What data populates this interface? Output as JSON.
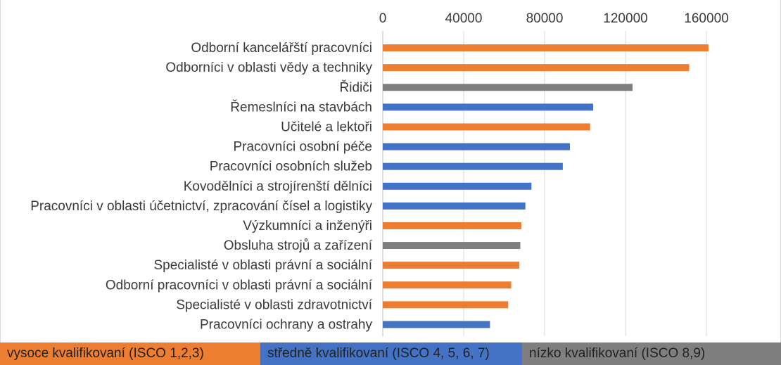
{
  "chart_data": {
    "type": "bar",
    "orientation": "horizontal",
    "xlim": [
      0,
      160000
    ],
    "ticks": [
      "0",
      "40000",
      "80000",
      "120000",
      "160000"
    ],
    "tick_values": [
      0,
      40000,
      80000,
      120000,
      160000
    ],
    "categories": [
      "Odborní kancelářští pracovníci",
      "Odborníci v oblasti vědy a techniky",
      "Řidiči",
      "Řemeslníci na stavbách",
      "Učitelé a lektoři",
      "Pracovníci osobní péče",
      "Pracovníci osobních služeb",
      "Kovodělníci a strojírenští dělníci",
      "Pracovníci v oblasti účetnictví, zpracování čísel a logistiky",
      "Výzkumníci a inženýři",
      "Obsluha strojů a zařízení",
      "Specialisté v oblasti právní a sociální",
      "Odborní pracovníci v oblasti právní a sociální ",
      "Specialisté v oblasti zdravotnictví",
      "Pracovníci ochrany a ostrahy"
    ],
    "values": [
      161000,
      151500,
      123500,
      104000,
      102500,
      92500,
      89000,
      73500,
      70500,
      68500,
      68000,
      67500,
      63500,
      62000,
      53000
    ],
    "groups": [
      "high",
      "high",
      "low",
      "mid",
      "high",
      "mid",
      "mid",
      "mid",
      "mid",
      "high",
      "low",
      "high",
      "high",
      "high",
      "mid"
    ],
    "legend": [
      {
        "key": "high",
        "name": "vysoce kvalifikovaní (ISCO 1,2,3)",
        "color": "#ED7D31"
      },
      {
        "key": "mid",
        "name": "středně kvalifikovaní (ISCO 4, 5, 6, 7)",
        "color": "#4472C4"
      },
      {
        "key": "low",
        "name": "nízko kvalifikovaní (ISCO 8,9)",
        "color": "#7F7F7F"
      }
    ],
    "legend_position": "bottom",
    "grid": true,
    "axis_position": "top"
  }
}
